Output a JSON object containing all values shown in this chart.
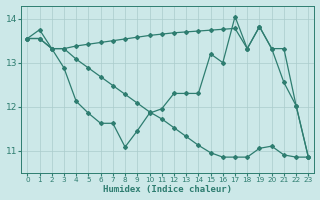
{
  "bg_color": "#cce8e8",
  "grid_color": "#aacccc",
  "line_color": "#2e7d70",
  "xlabel": "Humidex (Indice chaleur)",
  "ylim": [
    10.5,
    14.3
  ],
  "xlim": [
    -0.5,
    23.5
  ],
  "yticks": [
    11,
    12,
    13,
    14
  ],
  "xticks": [
    0,
    1,
    2,
    3,
    4,
    5,
    6,
    7,
    8,
    9,
    10,
    11,
    12,
    13,
    14,
    15,
    16,
    17,
    18,
    19,
    20,
    21,
    22,
    23
  ],
  "y_top": [
    13.55,
    13.55,
    13.32,
    13.32,
    13.38,
    13.42,
    13.46,
    13.5,
    13.54,
    13.58,
    13.62,
    13.65,
    13.68,
    13.7,
    13.72,
    13.74,
    13.76,
    13.78,
    13.32,
    13.82,
    13.32,
    13.32,
    12.02,
    10.85
  ],
  "y_mid": [
    13.55,
    13.75,
    13.32,
    12.88,
    12.12,
    11.85,
    11.62,
    11.62,
    11.08,
    11.45,
    11.85,
    11.95,
    12.3,
    12.3,
    12.3,
    13.2,
    13.0,
    14.05,
    13.32,
    13.82,
    13.32,
    12.55,
    12.02,
    10.85
  ],
  "y_bot": [
    13.55,
    13.55,
    13.32,
    13.32,
    13.08,
    12.88,
    12.68,
    12.48,
    12.28,
    12.08,
    11.88,
    11.72,
    11.52,
    11.32,
    11.12,
    10.95,
    10.85,
    10.85,
    10.85,
    11.05,
    11.1,
    10.9,
    10.85,
    10.85
  ]
}
